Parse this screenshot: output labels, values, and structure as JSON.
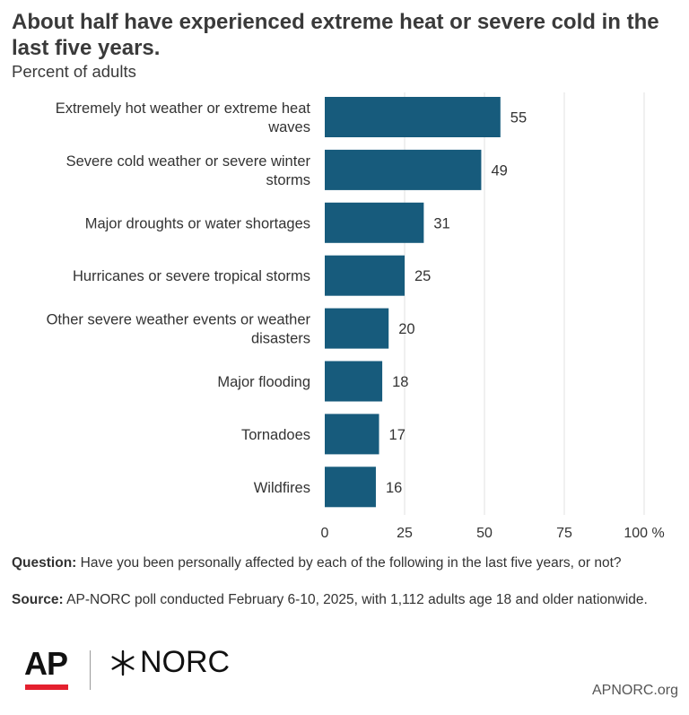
{
  "title": "About half have experienced extreme heat or severe cold in the last five years.",
  "subtitle": "Percent of adults",
  "chart_data": {
    "type": "bar",
    "orientation": "horizontal",
    "categories": [
      [
        "Extremely hot weather or extreme heat",
        "waves"
      ],
      [
        "Severe cold weather or severe winter",
        "storms"
      ],
      [
        "Major droughts or water shortages"
      ],
      [
        "Hurricanes or severe tropical storms"
      ],
      [
        "Other severe weather events or weather",
        "disasters"
      ],
      [
        "Major flooding"
      ],
      [
        "Tornadoes"
      ],
      [
        "Wildfires"
      ]
    ],
    "values": [
      55,
      49,
      31,
      25,
      20,
      18,
      17,
      16
    ],
    "xlim": [
      0,
      100
    ],
    "ticks": [
      "0",
      "25",
      "50",
      "75",
      "100 %"
    ],
    "tick_values": [
      0,
      25,
      50,
      75,
      100
    ],
    "grid": true,
    "bar_color": "#175b7c",
    "grid_color": "#e2e2e2"
  },
  "footnotes": {
    "question_label": "Question:",
    "question_text": " Have you been personally affected by each of the following in the last five years, or not?",
    "source_label": "Source:",
    "source_text": " AP-NORC poll conducted February 6-10, 2025, with 1,112 adults age 18 and older nationwide."
  },
  "logos": {
    "ap": "AP",
    "norc": "NORC",
    "ap_accent": "#e4202e"
  },
  "site": "APNORC.org"
}
